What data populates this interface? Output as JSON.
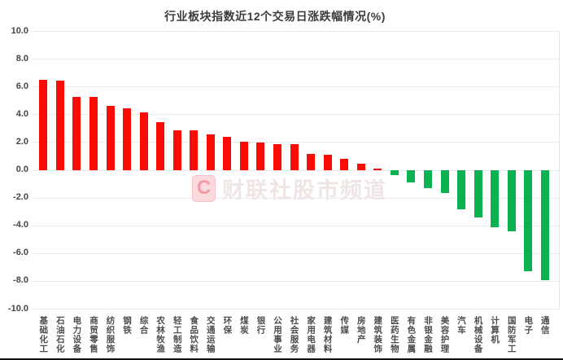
{
  "chart_data": {
    "type": "bar",
    "title": "行业板块指数近12个交易日涨跌幅情况(%)",
    "xlabel": "",
    "ylabel": "",
    "ylim": [
      -10,
      10
    ],
    "ytick_labels": [
      "10.0",
      "8.0",
      "6.0",
      "4.0",
      "2.0",
      "0.0",
      "-2.0",
      "-4.0",
      "-6.0",
      "-8.0",
      "-10.0"
    ],
    "ytick_values": [
      10,
      8,
      6,
      4,
      2,
      0,
      -2,
      -4,
      -6,
      -8,
      -10
    ],
    "grid": true,
    "legend": "none",
    "categories": [
      "基础化工",
      "石油石化",
      "电力设备",
      "商贸零售",
      "纺织服饰",
      "钢铁",
      "综合",
      "农林牧渔",
      "轻工制造",
      "食品饮料",
      "交通运输",
      "环保",
      "煤炭",
      "银行",
      "公用事业",
      "社会服务",
      "家用电器",
      "建筑材料",
      "传媒",
      "房地产",
      "建筑装饰",
      "医药生物",
      "有色金属",
      "非银金融",
      "美容护理",
      "汽车",
      "机械设备",
      "计算机",
      "国防军工",
      "电子",
      "通信"
    ],
    "values": [
      6.5,
      6.45,
      5.3,
      5.3,
      4.65,
      4.45,
      4.15,
      3.45,
      2.9,
      2.9,
      2.6,
      2.4,
      2.05,
      2.0,
      1.9,
      1.85,
      1.2,
      1.1,
      0.85,
      0.45,
      0.1,
      -0.35,
      -0.9,
      -1.3,
      -1.65,
      -2.8,
      -3.4,
      -4.1,
      -4.4,
      -7.3,
      -7.9
    ],
    "colors": {
      "positive_bar": "#f90d02",
      "negative_bar": "#0cb150",
      "gridline": "#ebebeb",
      "title_text": "#3c3c3c",
      "axis_tick_text": "#454545",
      "category_text": "#4d4d4d"
    }
  },
  "watermark": {
    "badge_letter": "C",
    "text": "财联社股市频道"
  }
}
